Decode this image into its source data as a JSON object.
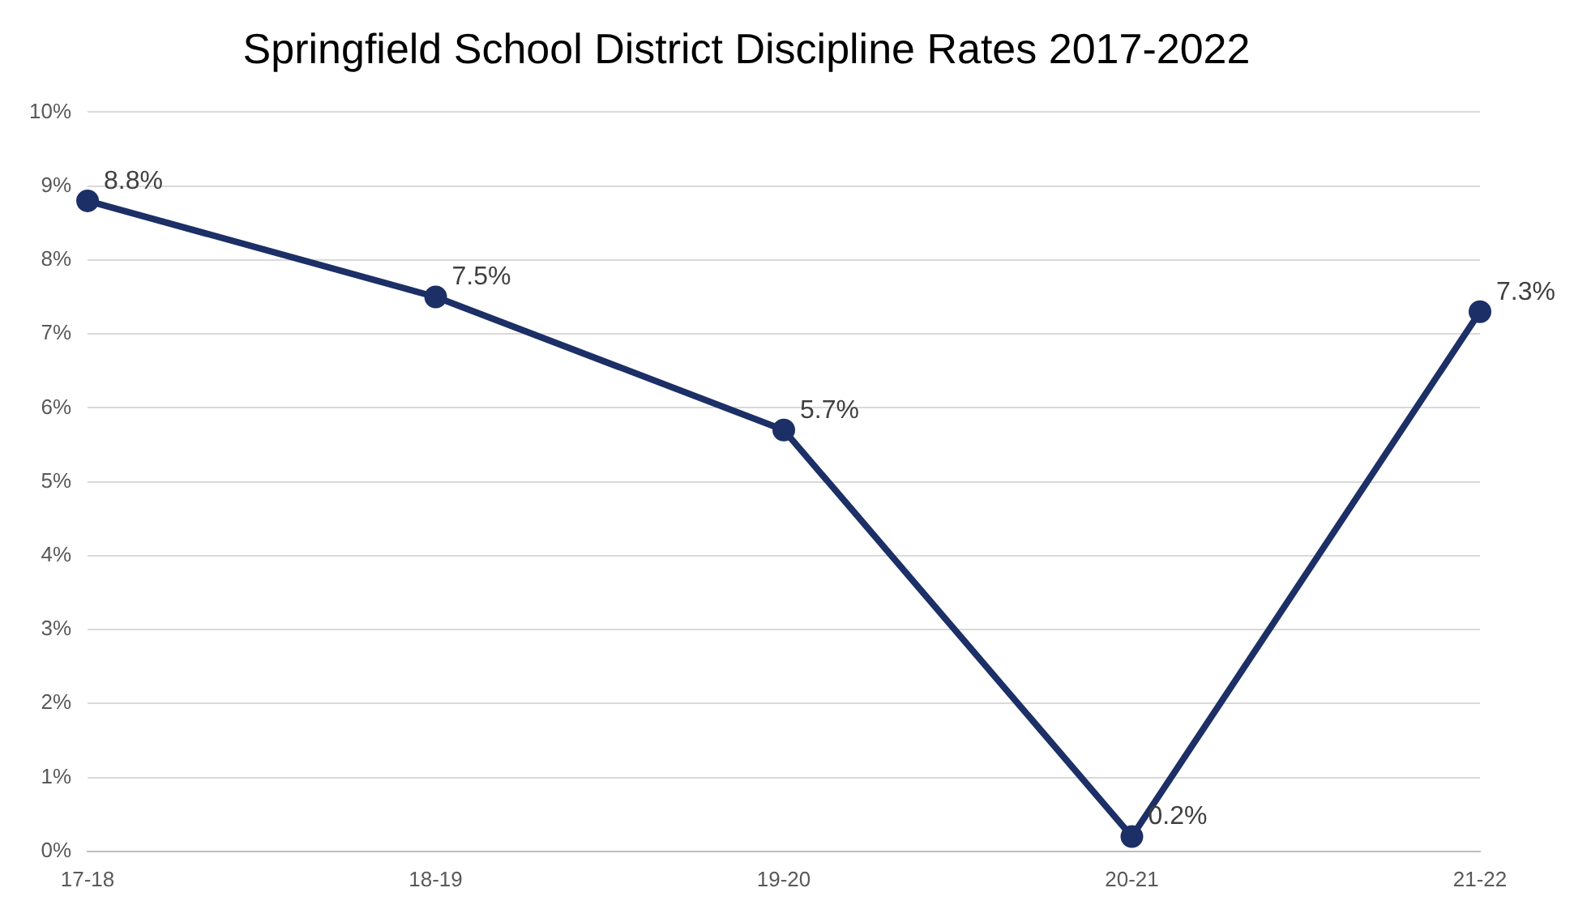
{
  "chart_data": {
    "type": "line",
    "title": "Springfield School District Discipline Rates 2017-2022",
    "categories": [
      "17-18",
      "18-19",
      "19-20",
      "20-21",
      "21-22"
    ],
    "series": [
      {
        "color": "#1c2f66",
        "values": [
          8.8,
          7.5,
          5.7,
          0.2,
          7.3
        ],
        "value_labels": [
          "8.8%",
          "7.5%",
          "5.7%",
          "0.2%",
          "7.3%"
        ]
      }
    ],
    "ylim": [
      0,
      10
    ],
    "yticks": [
      {
        "value": 0,
        "label": "0%"
      },
      {
        "value": 1,
        "label": "1%"
      },
      {
        "value": 2,
        "label": "2%"
      },
      {
        "value": 3,
        "label": "3%"
      },
      {
        "value": 4,
        "label": "4%"
      },
      {
        "value": 5,
        "label": "5%"
      },
      {
        "value": 6,
        "label": "6%"
      },
      {
        "value": 7,
        "label": "7%"
      },
      {
        "value": 8,
        "label": "8%"
      },
      {
        "value": 9,
        "label": "9%"
      },
      {
        "value": 10,
        "label": "10%"
      }
    ],
    "grid": "y",
    "legend": false,
    "marker": "circle",
    "line_style": "solid"
  }
}
